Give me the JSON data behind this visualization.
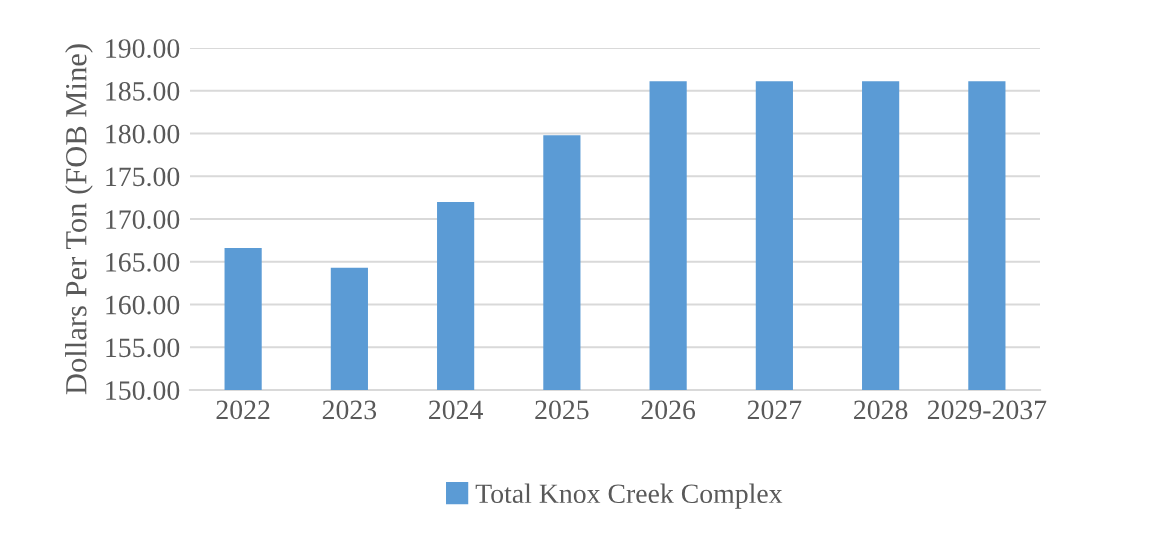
{
  "chart_data": {
    "type": "bar",
    "ylabel": "Dollars Per Ton (FOB Mine)",
    "categories": [
      "2022",
      "2023",
      "2024",
      "2025",
      "2026",
      "2027",
      "2028",
      "2029-2037"
    ],
    "series": [
      {
        "name": "Total Knox Creek Complex",
        "color": "#5b9bd5",
        "values": [
          166.6,
          164.3,
          172.0,
          179.8,
          186.1,
          186.1,
          186.1,
          186.1
        ]
      }
    ],
    "ylim": [
      150,
      190
    ],
    "yticks": [
      {
        "value": 150,
        "label": "150.00"
      },
      {
        "value": 155,
        "label": "155.00"
      },
      {
        "value": 160,
        "label": "160.00"
      },
      {
        "value": 165,
        "label": "165.00"
      },
      {
        "value": 170,
        "label": "170.00"
      },
      {
        "value": 175,
        "label": "175.00"
      },
      {
        "value": 180,
        "label": "180.00"
      },
      {
        "value": 185,
        "label": "185.00"
      },
      {
        "value": 190,
        "label": "190.00"
      }
    ],
    "grid": "y",
    "legend": "bottom"
  }
}
